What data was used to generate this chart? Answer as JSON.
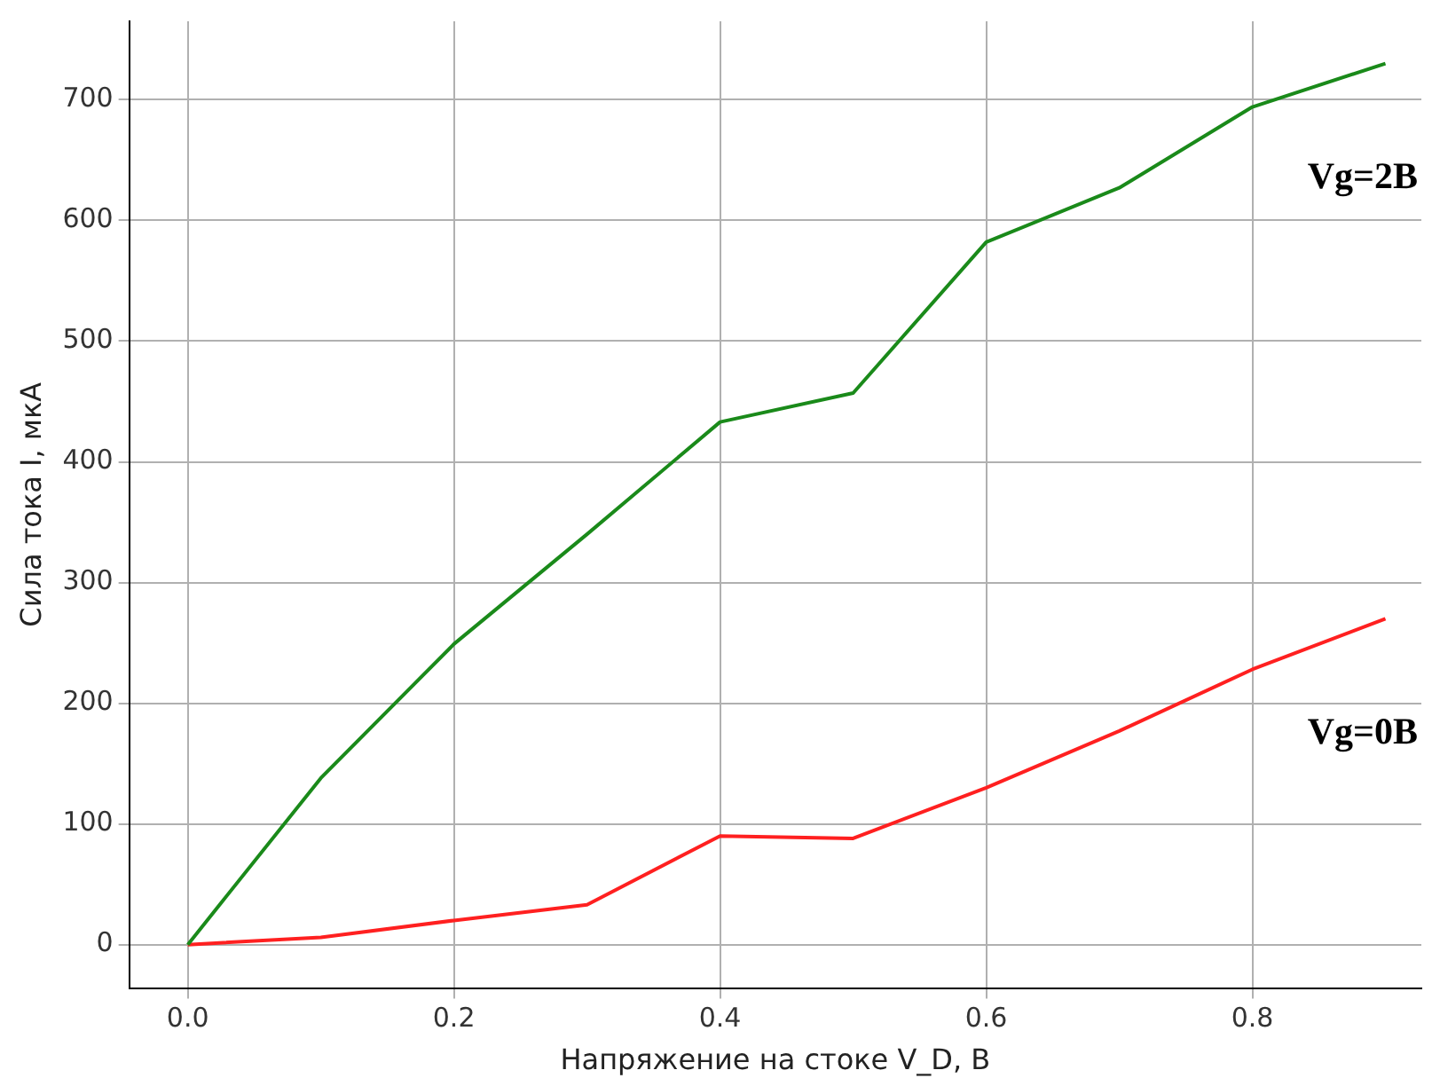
{
  "chart_data": {
    "type": "line",
    "xlabel": "Напряжение на стоке V_D, В",
    "ylabel": "Сила тока I, мкА",
    "x": [
      0,
      0.1,
      0.2,
      0.3,
      0.4,
      0.5,
      0.6,
      0.7,
      0.8,
      0.9
    ],
    "series": [
      {
        "name": "Vg=2B",
        "color": "#1a8a1a",
        "values": [
          0,
          138,
          249,
          340,
          433,
          457,
          582,
          627,
          694,
          730
        ]
      },
      {
        "name": "Vg=0B",
        "color": "#ff2020",
        "values": [
          0,
          6,
          20,
          33,
          90,
          88,
          130,
          177,
          228,
          270
        ]
      }
    ],
    "xlim": [
      -0.044,
      0.927
    ],
    "xticks": [
      {
        "value": 0,
        "label": "0.0"
      },
      0.2,
      0.4,
      0.6,
      0.8
    ],
    "ylim": [
      -36,
      765
    ],
    "yticks": [
      0,
      100,
      200,
      300,
      400,
      500,
      600,
      700
    ],
    "grid": true,
    "legend": false,
    "marker": "none",
    "line_style": "solid"
  }
}
